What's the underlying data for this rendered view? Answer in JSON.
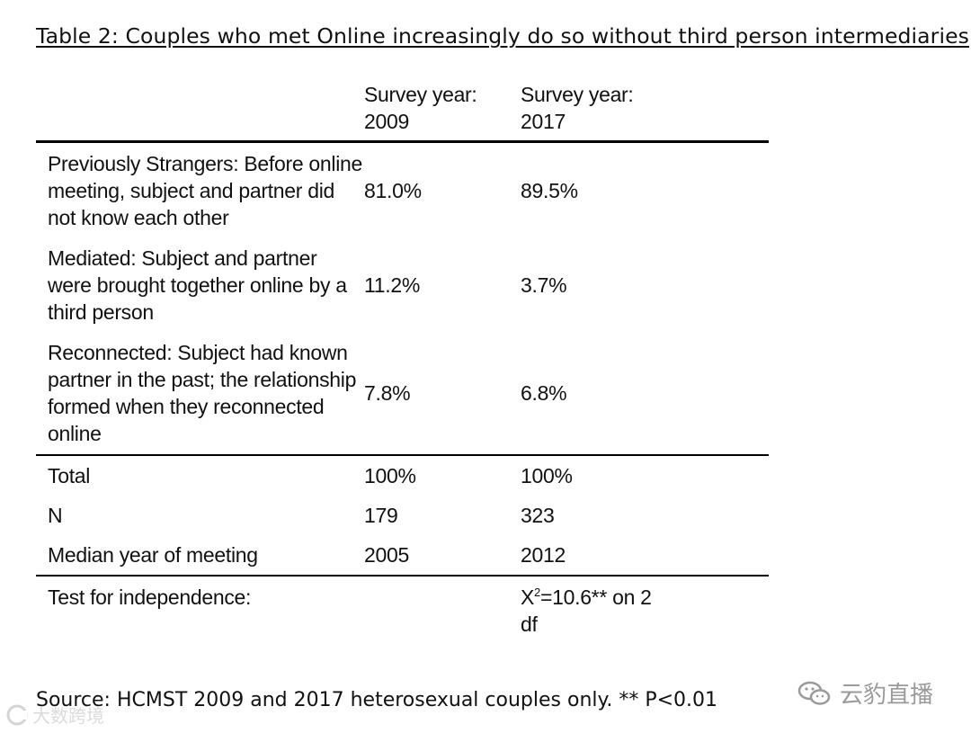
{
  "title": "Table 2: Couples who met Online increasingly do so without third person intermediaries",
  "table": {
    "headers": [
      "",
      "Survey year:\n2009",
      "Survey year:\n2017"
    ],
    "rows": [
      [
        "Previously Strangers: Before online\nmeeting, subject and partner did\nnot know each other",
        "81.0%",
        "89.5%"
      ],
      [
        "Mediated: Subject and partner\nwere brought together online by a\nthird person",
        "11.2%",
        "3.7%"
      ],
      [
        "Reconnected: Subject had known\npartner in the past; the relationship\nformed when they reconnected\nonline",
        "7.8%",
        "6.8%"
      ],
      [
        "Total",
        "100%",
        "100%"
      ],
      [
        "N",
        "179",
        "323"
      ],
      [
        "Median year of meeting",
        "2005",
        "2012"
      ]
    ],
    "test": {
      "label": "Test for independence:",
      "x": "X",
      "sup": "2",
      "line1_rest": "=10.6** on 2",
      "line2": "df"
    }
  },
  "source": "Source: HCMST 2009 and 2017 heterosexual couples only. ** P<0.01",
  "watermarks": {
    "left_text": "大数跨境",
    "left_icon": "c-logo-icon",
    "right_text": "云豹直播",
    "right_icon": "wechat-icon"
  }
}
